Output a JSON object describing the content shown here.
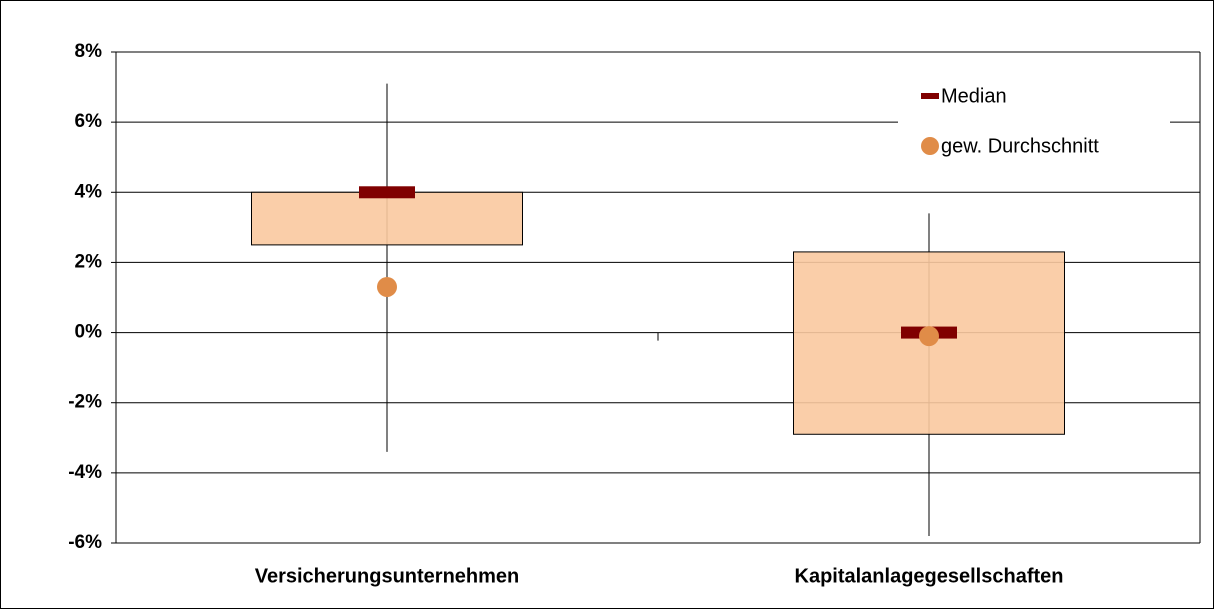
{
  "chart_data": {
    "type": "box",
    "categories": [
      "Versicherungsunternehmen",
      "Kapitalanlagegesellschaften"
    ],
    "box": {
      "color": "#f9c9a0",
      "low": [
        -3.4,
        -5.8
      ],
      "q1": [
        2.5,
        -2.9
      ],
      "q3": [
        4.0,
        2.3
      ],
      "high": [
        7.1,
        3.4
      ]
    },
    "series": [
      {
        "name": "Median",
        "color": "#800000",
        "values": [
          4.0,
          0.0
        ]
      },
      {
        "name": "gew. Durchschnitt",
        "color": "#e08c48",
        "values": [
          1.3,
          -0.1
        ]
      }
    ],
    "ylim": [
      -6,
      8
    ],
    "yticks": [
      {
        "value": -6,
        "label": "-6%"
      },
      {
        "value": -4,
        "label": "-4%"
      },
      {
        "value": -2,
        "label": "-2%"
      },
      {
        "value": 0,
        "label": "0%"
      },
      {
        "value": 2,
        "label": "2%"
      },
      {
        "value": 4,
        "label": "4%"
      },
      {
        "value": 6,
        "label": "6%"
      },
      {
        "value": 8,
        "label": "8%"
      }
    ],
    "grid": true,
    "legend": "upper right"
  }
}
